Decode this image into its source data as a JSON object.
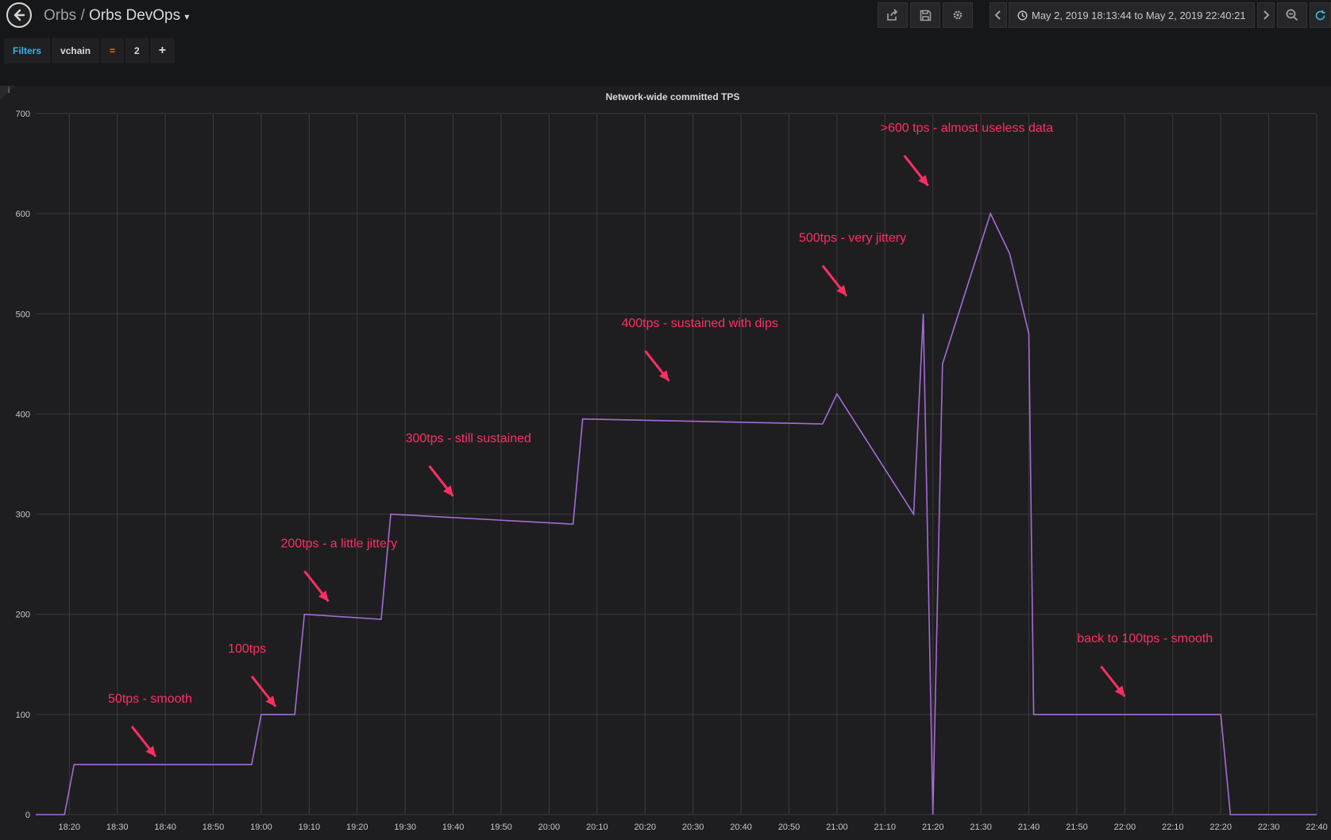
{
  "breadcrumb": {
    "parent": "Orbs",
    "separator": "/",
    "title": "Orbs DevOps",
    "caret": "▾"
  },
  "time_range": {
    "label": "May 2, 2019 18:13:44 to May 2, 2019 22:40:21"
  },
  "filters": {
    "label": "Filters",
    "key": "vchain",
    "operator": "=",
    "value": "2",
    "add": "+"
  },
  "panel": {
    "title": "Network-wide committed TPS",
    "info": "i"
  },
  "colors": {
    "accent": "#33b5e5",
    "annotation": "#ff2e63",
    "series_main": "#a66bd6",
    "operator": "#eb7b18"
  },
  "icons": [
    "back-arrow-icon",
    "share-icon",
    "save-icon",
    "gear-icon",
    "chevron-left-icon",
    "clock-icon",
    "chevron-right-icon",
    "zoom-out-icon",
    "refresh-icon",
    "plus-icon"
  ],
  "chart_data": {
    "type": "line",
    "title": "Network-wide committed TPS",
    "xlabel": "",
    "ylabel": "",
    "ylim": [
      0,
      700
    ],
    "x_range": [
      "18:13",
      "22:40"
    ],
    "y_ticks": [
      0,
      100,
      200,
      300,
      400,
      500,
      600,
      700
    ],
    "x_ticks": [
      "18:20",
      "18:30",
      "18:40",
      "18:50",
      "19:00",
      "19:10",
      "19:20",
      "19:30",
      "19:40",
      "19:50",
      "20:00",
      "20:10",
      "20:20",
      "20:30",
      "20:40",
      "20:50",
      "21:00",
      "21:10",
      "21:20",
      "21:30",
      "21:40",
      "21:50",
      "22:00",
      "22:10",
      "22:20",
      "22:30",
      "22:40"
    ],
    "grid": true,
    "series": [
      {
        "x": [
          "18:13",
          "18:19",
          "18:21",
          "18:40",
          "18:58",
          "19:00",
          "19:07",
          "19:09",
          "19:25",
          "19:27",
          "20:05",
          "20:07",
          "20:57",
          "21:00",
          "21:16",
          "21:18",
          "21:20",
          "21:22",
          "21:32",
          "21:36",
          "21:40",
          "21:41",
          "22:20",
          "22:22",
          "22:40"
        ],
        "values": [
          0,
          0,
          50,
          50,
          50,
          100,
          100,
          200,
          195,
          300,
          290,
          395,
          390,
          420,
          300,
          500,
          0,
          450,
          600,
          560,
          480,
          100,
          100,
          0,
          0
        ]
      }
    ],
    "annotations": [
      {
        "text": "50tps - smooth",
        "x": "18:38",
        "y": 50
      },
      {
        "text": "100tps",
        "x": "19:03",
        "y": 100
      },
      {
        "text": "200tps - a little jittery",
        "x": "19:14",
        "y": 205
      },
      {
        "text": "300tps - still sustained",
        "x": "19:40",
        "y": 310
      },
      {
        "text": "400tps - sustained with dips",
        "x": "20:25",
        "y": 425
      },
      {
        "text": "500tps - very jittery",
        "x": "21:02",
        "y": 510
      },
      {
        "text": ">600 tps - almost useless data",
        "x": "21:19",
        "y": 620
      },
      {
        "text": "back to 100tps - smooth",
        "x": "22:00",
        "y": 110
      }
    ]
  }
}
